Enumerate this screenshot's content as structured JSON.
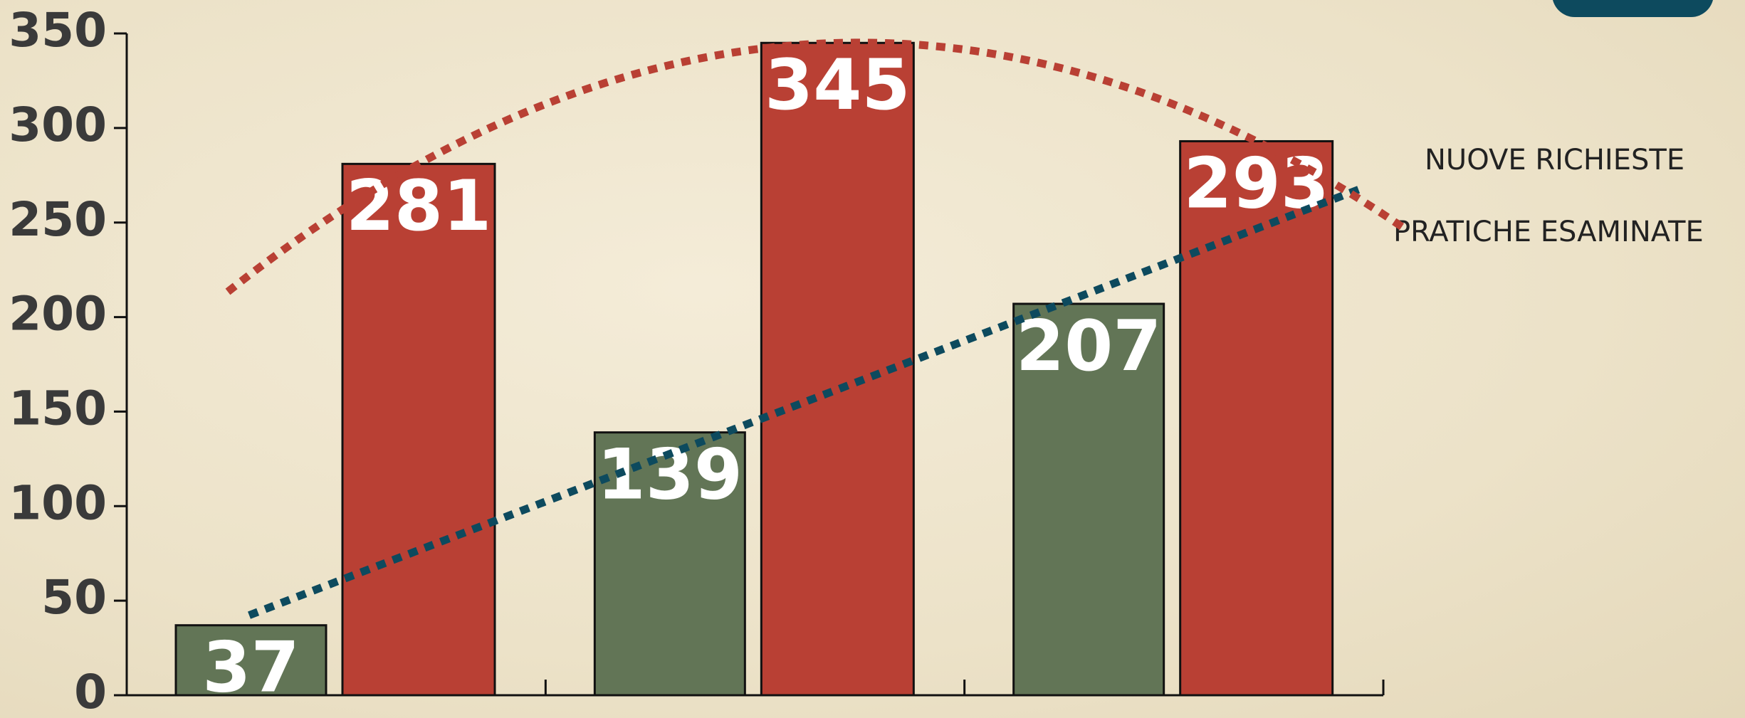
{
  "chart_data": {
    "type": "bar",
    "categories": [
      null,
      null,
      null
    ],
    "series": [
      {
        "name": "PRATICHE ESAMINATE",
        "color": "#627556",
        "trend_color": "#0d4a5e",
        "values": [
          37,
          139,
          207
        ]
      },
      {
        "name": "NUOVE RICHIESTE",
        "color": "#b94034",
        "trend_color": "#b94034",
        "values": [
          281,
          345,
          293
        ]
      }
    ],
    "ylim": [
      0,
      350
    ],
    "yticks": [
      0,
      50,
      100,
      150,
      200,
      250,
      300,
      350
    ],
    "grid": false
  }
}
